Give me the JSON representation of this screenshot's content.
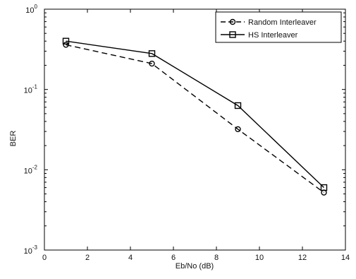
{
  "chart_data": {
    "type": "line",
    "title": "",
    "xlabel": "Eb/No (dB)",
    "ylabel": "BER",
    "xlim": [
      0,
      14
    ],
    "ylim": [
      0.001,
      1
    ],
    "yscale": "log",
    "grid": false,
    "legend_position": "top-right",
    "x_ticks": [
      "0",
      "2",
      "4",
      "6",
      "8",
      "10",
      "12",
      "14"
    ],
    "y_ticks": [
      {
        "base": "10",
        "exp": "0",
        "value": 1
      },
      {
        "base": "10",
        "exp": "-1",
        "value": 0.1
      },
      {
        "base": "10",
        "exp": "-2",
        "value": 0.01
      },
      {
        "base": "10",
        "exp": "-3",
        "value": 0.001
      }
    ],
    "series": [
      {
        "name": "Random Interleaver",
        "marker": "circle",
        "line": "dashed",
        "color": "#000000",
        "x": [
          1,
          5,
          9,
          13
        ],
        "y": [
          0.36,
          0.21,
          0.032,
          0.0052
        ]
      },
      {
        "name": "HS Interleaver",
        "marker": "square",
        "line": "solid",
        "color": "#000000",
        "x": [
          1,
          5,
          9,
          13
        ],
        "y": [
          0.4,
          0.28,
          0.063,
          0.006
        ]
      }
    ]
  }
}
